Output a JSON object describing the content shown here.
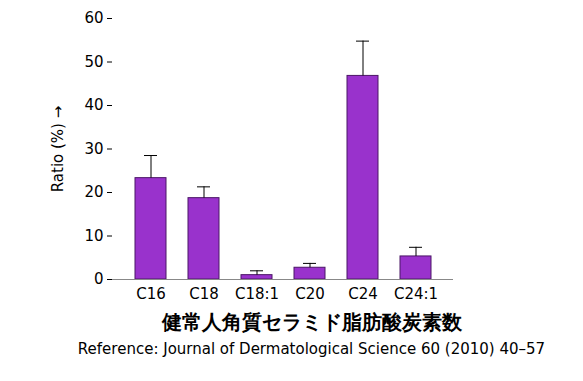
{
  "chart_data": {
    "type": "bar",
    "categories": [
      "C16",
      "C18",
      "C18:1",
      "C20",
      "C24",
      "C24:1"
    ],
    "values": [
      23.3,
      18.7,
      1.0,
      2.7,
      46.8,
      5.3
    ],
    "errors": [
      5.2,
      2.6,
      1.0,
      1.0,
      8.0,
      2.1
    ],
    "color": "#9932cc",
    "y_label": "Ratio (%)",
    "x_label": "健常人角質セラミド脂肪酸炭素数",
    "caption": "Reference: Journal of Dermatological Science 60 (2010) 40–57",
    "ylim": [
      0,
      60
    ],
    "yticks": [
      0,
      10,
      20,
      30,
      40,
      50,
      60
    ],
    "grid": false
  }
}
